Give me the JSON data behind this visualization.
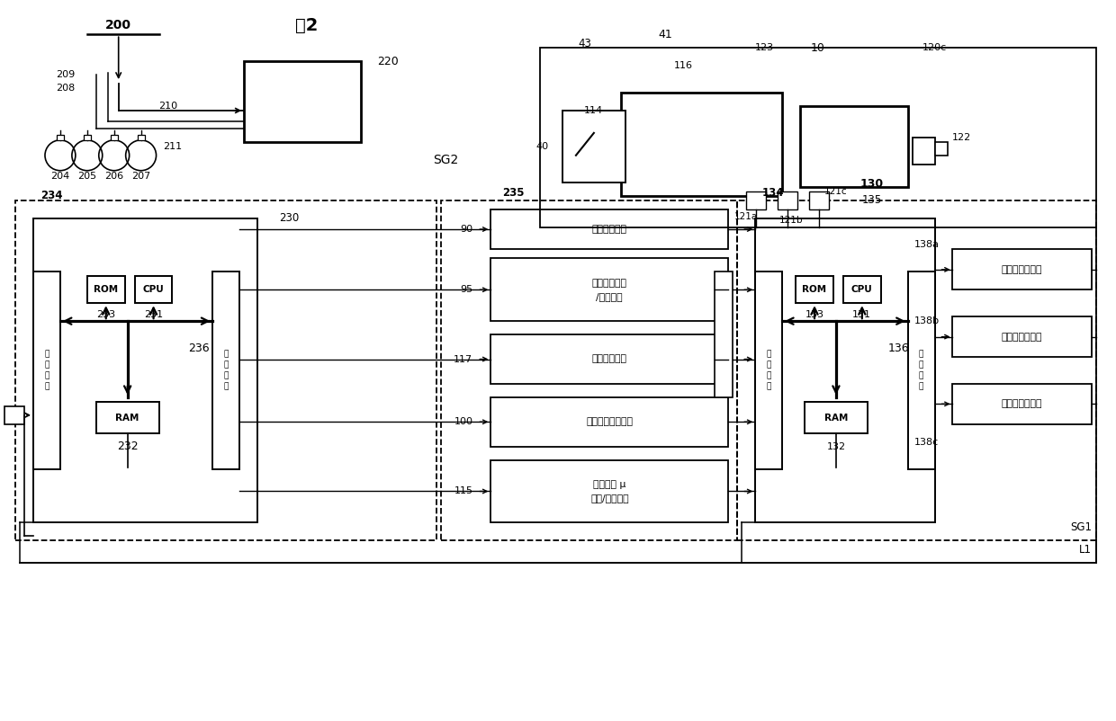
{
  "bg_color": "#ffffff",
  "fig_width": 12.4,
  "fig_height": 8.02,
  "labels": {
    "fig_title": "图2",
    "l200": "200",
    "l220": "220",
    "lSG2": "SG2",
    "l209": "209",
    "l208": "208",
    "l210": "210",
    "l211": "211",
    "l204": "204",
    "l205": "205",
    "l206": "206",
    "l207": "207",
    "l230": "230",
    "l234": "234",
    "l233": "233",
    "l231": "231",
    "l232": "232",
    "l236": "236",
    "l235": "235",
    "l90": "90",
    "l95": "95",
    "l117": "117",
    "l100": "100",
    "l115": "115",
    "lROM1": "ROM",
    "lCPU1": "CPU",
    "lRAM1": "RAM",
    "linput1": "输\n入\n端\n口",
    "loutput1": "输\n出\n端\n口",
    "laccel": "加速度传感器",
    "lrel_speed": "相对车速检测\n/估计部件",
    "lmode": "模式选择开关",
    "linter_dist": "车间距离测量部件",
    "lroad": "路面系数 μ\n检测/估计部件",
    "l41": "41",
    "l43": "43",
    "l116": "116",
    "l123": "123",
    "l10": "10",
    "l120c": "120c",
    "l122": "122",
    "l114": "114",
    "l40": "40",
    "l121a": "121a",
    "l121b": "121b",
    "l121c": "121c",
    "l130": "130",
    "l134": "134",
    "l135": "135",
    "l133": "133",
    "l131": "131",
    "l132": "132",
    "l136": "136",
    "lROM2": "ROM",
    "lCPU2": "CPU",
    "lRAM2": "RAM",
    "linput2": "输\n入\n端\n口",
    "loutput2": "输\n出\n端\n口",
    "l138a": "138a",
    "l138b": "138b",
    "l138c": "138c",
    "lsol_a": "电磁阀驱动部件",
    "lsol_b": "电磁阀驱动部件",
    "lsol_c": "电磁阀驱动部件",
    "lSG1": "SG1",
    "lL1": "L1"
  }
}
